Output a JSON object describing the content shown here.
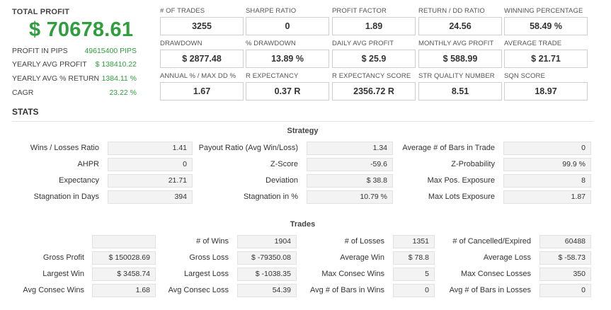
{
  "summary": {
    "total_profit_label": "TOTAL PROFIT",
    "total_profit_value": "$ 70678.61",
    "rows": [
      {
        "label": "PROFIT IN PIPS",
        "value": "49615400 PIPS"
      },
      {
        "label": "YEARLY AVG PROFIT",
        "value": "$ 138410.22"
      },
      {
        "label": "YEARLY AVG % RETURN",
        "value": "1384.11 %"
      },
      {
        "label": "CAGR",
        "value": "23.22 %"
      }
    ]
  },
  "metrics": [
    [
      {
        "label": "# OF TRADES",
        "value": "3255"
      },
      {
        "label": "SHARPE RATIO",
        "value": "0"
      },
      {
        "label": "PROFIT FACTOR",
        "value": "1.89"
      },
      {
        "label": "RETURN / DD RATIO",
        "value": "24.56"
      },
      {
        "label": "WINNING PERCENTAGE",
        "value": "58.49 %"
      }
    ],
    [
      {
        "label": "DRAWDOWN",
        "value": "$ 2877.48"
      },
      {
        "label": "% DRAWDOWN",
        "value": "13.89 %"
      },
      {
        "label": "DAILY AVG PROFIT",
        "value": "$ 25.9"
      },
      {
        "label": "MONTHLY AVG PROFIT",
        "value": "$ 588.99"
      },
      {
        "label": "AVERAGE TRADE",
        "value": "$ 21.71"
      }
    ],
    [
      {
        "label": "ANNUAL % / MAX DD %",
        "value": "1.67"
      },
      {
        "label": "R EXPECTANCY",
        "value": "0.37 R"
      },
      {
        "label": "R EXPECTANCY SCORE",
        "value": "2356.72 R"
      },
      {
        "label": "STR QUALITY NUMBER",
        "value": "8.51"
      },
      {
        "label": "SQN SCORE",
        "value": "18.97"
      }
    ]
  ],
  "stats_title": "STATS",
  "strategy": {
    "title": "Strategy",
    "rows": [
      [
        {
          "label": "Wins / Losses Ratio",
          "value": "1.41"
        },
        {
          "label": "Payout Ratio (Avg Win/Loss)",
          "value": "1.34"
        },
        {
          "label": "Average # of Bars in Trade",
          "value": "0"
        }
      ],
      [
        {
          "label": "AHPR",
          "value": "0"
        },
        {
          "label": "Z-Score",
          "value": "-59.6"
        },
        {
          "label": "Z-Probability",
          "value": "99.9 %"
        }
      ],
      [
        {
          "label": "Expectancy",
          "value": "21.71"
        },
        {
          "label": "Deviation",
          "value": "$ 38.8"
        },
        {
          "label": "Max Pos. Exposure",
          "value": "8"
        }
      ],
      [
        {
          "label": "Stagnation in Days",
          "value": "394"
        },
        {
          "label": "Stagnation in %",
          "value": "10.79 %"
        },
        {
          "label": "Max Lots Exposure",
          "value": "1.87"
        }
      ]
    ]
  },
  "trades": {
    "title": "Trades",
    "rows": [
      [
        {
          "label": "",
          "value": ""
        },
        {
          "label": "# of Wins",
          "value": "1904"
        },
        {
          "label": "# of Losses",
          "value": "1351"
        },
        {
          "label": "# of Cancelled/Expired",
          "value": "60488"
        }
      ],
      [
        {
          "label": "Gross Profit",
          "value": "$ 150028.69"
        },
        {
          "label": "Gross Loss",
          "value": "$ -79350.08"
        },
        {
          "label": "Average Win",
          "value": "$ 78.8"
        },
        {
          "label": "Average Loss",
          "value": "$ -58.73"
        }
      ],
      [
        {
          "label": "Largest Win",
          "value": "$ 3458.74"
        },
        {
          "label": "Largest Loss",
          "value": "$ -1038.35"
        },
        {
          "label": "Max Consec Wins",
          "value": "5"
        },
        {
          "label": "Max Consec Losses",
          "value": "350"
        }
      ],
      [
        {
          "label": "Avg Consec Wins",
          "value": "1.68"
        },
        {
          "label": "Avg Consec Loss",
          "value": "54.39"
        },
        {
          "label": "Avg # of Bars in Wins",
          "value": "0"
        },
        {
          "label": "Avg # of Bars in Losses",
          "value": "0"
        }
      ]
    ]
  }
}
